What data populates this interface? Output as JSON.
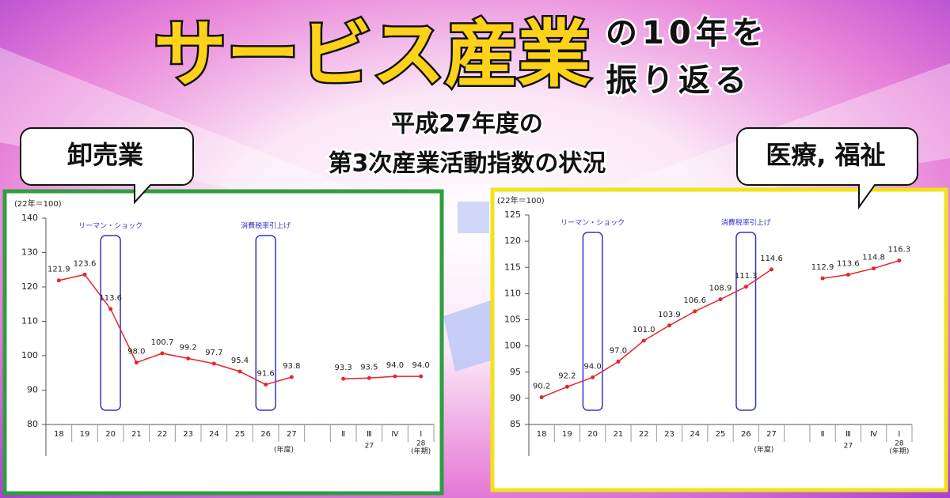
{
  "header": {
    "title": "サービス産業",
    "title_tail_1": "の10年を",
    "title_tail_2": "振り返る",
    "subtitle_1": "平成27年度の",
    "subtitle_2": "第3次産業活動指数の状況"
  },
  "chart_data": [
    {
      "type": "line",
      "title": "卸売業",
      "y_label": "(22年＝100)",
      "frame_color": "#2e9e3e",
      "color": "#e8252a",
      "categories": [
        "18",
        "19",
        "20",
        "21",
        "22",
        "23",
        "24",
        "25",
        "26",
        "27",
        null,
        "Ⅱ",
        "Ⅲ",
        "Ⅳ",
        "Ⅰ"
      ],
      "values": [
        121.9,
        123.6,
        113.6,
        98.0,
        100.7,
        99.2,
        97.7,
        95.4,
        91.6,
        93.8,
        null,
        93.3,
        93.5,
        94.0,
        94.0
      ],
      "value_labels": [
        "121.9",
        "123.6",
        "113.6",
        "98.0",
        "100.7",
        "99.2",
        "97.7",
        "95.4",
        "91.6",
        "93.8",
        null,
        "93.3",
        "93.5",
        "94.0",
        "94.0"
      ],
      "ylim": [
        80,
        140
      ],
      "yticks": [
        80,
        90,
        100,
        110,
        120,
        130,
        140
      ],
      "annotations": [
        {
          "text": "リーマン・ショック",
          "category": "20"
        },
        {
          "text": "消費税率引上げ",
          "category": "26"
        }
      ],
      "x_notes": {
        "year_unit": "(年度)",
        "year_a": "27",
        "year_b": "28",
        "quarter_unit": "(年期)"
      }
    },
    {
      "type": "line",
      "title": "医療, 福祉",
      "y_label": "(22年＝100)",
      "frame_color": "#f2e21a",
      "color": "#e8252a",
      "categories": [
        "18",
        "19",
        "20",
        "21",
        "22",
        "23",
        "24",
        "25",
        "26",
        "27",
        null,
        "Ⅱ",
        "Ⅲ",
        "Ⅳ",
        "Ⅰ"
      ],
      "values": [
        90.2,
        92.2,
        94.0,
        97.0,
        101.0,
        103.9,
        106.6,
        108.9,
        111.3,
        114.6,
        null,
        112.9,
        113.6,
        114.8,
        116.3
      ],
      "value_labels": [
        "90.2",
        "92.2",
        "94.0",
        "97.0",
        "101.0",
        "103.9",
        "106.6",
        "108.9",
        "111.3",
        "114.6",
        null,
        "112.9",
        "113.6",
        "114.8",
        "116.3"
      ],
      "ylim": [
        85,
        125
      ],
      "yticks": [
        85,
        90,
        95,
        100,
        105,
        110,
        115,
        120,
        125
      ],
      "annotations": [
        {
          "text": "リーマン・ショック",
          "category": "20"
        },
        {
          "text": "消費税率引上げ",
          "category": "26"
        }
      ],
      "x_notes": {
        "year_unit": "(年度)",
        "year_a": "27",
        "year_b": "28",
        "quarter_unit": "(年期)"
      }
    }
  ]
}
